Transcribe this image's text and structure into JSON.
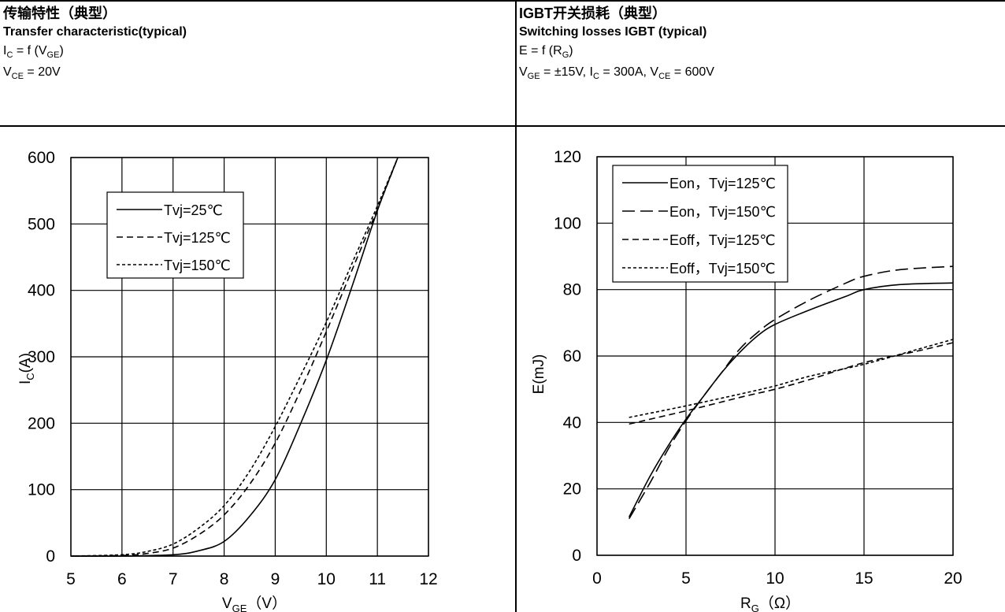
{
  "left": {
    "title_zh": "传输特性（典型）",
    "title_en": "Transfer characteristic(typical)",
    "func": {
      "lhs": "I",
      "lhs_sub": "C",
      "eq": " = f (V",
      "arg_sub": "GE",
      "close": ")"
    },
    "cond": {
      "sym": "V",
      "sym_sub": "CE",
      "val": " = 20V"
    }
  },
  "right": {
    "title_zh": "IGBT开关损耗（典型）",
    "title_en": "Switching losses IGBT (typical)",
    "func": {
      "lhs": "E = f (R",
      "lhs_sub": "G",
      "close": ")"
    },
    "cond": {
      "v": "V",
      "v_sub": "GE",
      "v_val": " = ±15V, I",
      "i_sub": "C",
      "i_val": " = 300A, V",
      "vce_sub": "CE",
      "vce_val": " = 600V"
    }
  },
  "chart_data": [
    {
      "type": "line",
      "xlim": [
        5,
        12
      ],
      "ylim": [
        0,
        600
      ],
      "xticks": [
        5,
        6,
        7,
        8,
        9,
        10,
        11,
        12
      ],
      "yticks": [
        0,
        100,
        200,
        300,
        400,
        500,
        600
      ],
      "xlabel_main": "V",
      "xlabel_sub": "GE",
      "xlabel_unit": "（V）",
      "ylabel_main": "I",
      "ylabel_sub": "C",
      "ylabel_unit": "(A)",
      "grid": true,
      "legend_position": "top-left",
      "series": [
        {
          "name": "Tvj=25℃",
          "dash": "solid",
          "x": [
            5,
            6,
            7,
            7.5,
            8,
            8.5,
            9,
            9.5,
            10,
            10.5,
            11,
            11.4
          ],
          "y": [
            0,
            0,
            2,
            8,
            22,
            60,
            115,
            200,
            295,
            405,
            520,
            600
          ]
        },
        {
          "name": "Tvj=125℃",
          "dash": "dash",
          "x": [
            5,
            6,
            6.5,
            7,
            7.5,
            8,
            8.5,
            9,
            9.5,
            10,
            10.5,
            11,
            11.4
          ],
          "y": [
            0,
            1,
            4,
            12,
            32,
            62,
            108,
            170,
            250,
            338,
            430,
            522,
            600
          ]
        },
        {
          "name": "Tvj=150℃",
          "dash": "shortdash",
          "x": [
            5,
            6,
            6.5,
            7,
            7.5,
            8,
            8.5,
            9,
            9.5,
            10,
            10.5,
            11,
            11.4
          ],
          "y": [
            0,
            2,
            7,
            18,
            42,
            76,
            128,
            195,
            272,
            352,
            440,
            527,
            600
          ]
        }
      ]
    },
    {
      "type": "line",
      "xlim": [
        0,
        20
      ],
      "ylim": [
        0,
        120
      ],
      "xticks": [
        0,
        5,
        10,
        15,
        20
      ],
      "yticks": [
        0,
        20,
        40,
        60,
        80,
        100,
        120
      ],
      "xlabel_main": "R",
      "xlabel_sub": "G",
      "xlabel_unit": "（Ω）",
      "ylabel": "E(mJ)",
      "grid": true,
      "legend_position": "top-left",
      "series": [
        {
          "name": "Eon，Tvj=125℃",
          "dash": "solid",
          "x": [
            1.8,
            3,
            4,
            5,
            6,
            7,
            8,
            9,
            10,
            12,
            14,
            15,
            17,
            20
          ],
          "y": [
            11.5,
            24,
            33,
            41,
            48,
            55,
            61,
            66,
            69.5,
            74,
            78,
            80,
            81.5,
            82
          ]
        },
        {
          "name": "Eon，Tvj=150℃",
          "dash": "longdash",
          "x": [
            1.8,
            3,
            4,
            5,
            6,
            7,
            8,
            9,
            10,
            12,
            14,
            15,
            17,
            20
          ],
          "y": [
            11,
            22,
            32,
            40.5,
            48,
            55,
            62,
            67,
            71,
            77,
            82,
            84,
            86,
            87
          ]
        },
        {
          "name": "Eoff，Tvj=125℃",
          "dash": "dash",
          "x": [
            1.8,
            5,
            8,
            10,
            12,
            15,
            18,
            20
          ],
          "y": [
            39.5,
            43.5,
            47.5,
            50,
            53,
            58,
            61.5,
            64
          ]
        },
        {
          "name": "Eoff，Tvj=150℃",
          "dash": "shortdash",
          "x": [
            1.8,
            5,
            8,
            10,
            12,
            15,
            18,
            20
          ],
          "y": [
            41.5,
            45,
            48.5,
            51,
            54,
            57.5,
            62,
            65
          ]
        }
      ]
    }
  ]
}
